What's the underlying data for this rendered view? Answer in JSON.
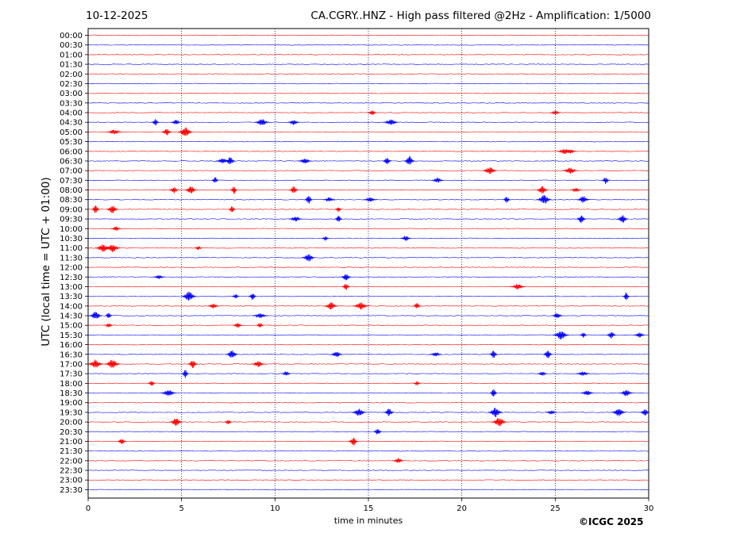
{
  "header": {
    "date": "10-12-2025",
    "title": "CA.CGRY..HNZ - High pass filtered @2Hz - Amplification: 1/5000"
  },
  "footer": {
    "copyright": "©ICGC 2025"
  },
  "colors": {
    "red_trace": "#ff0000",
    "blue_trace": "#0000ff",
    "gridline": "#00008b"
  },
  "chart_data": {
    "type": "line",
    "title": "CA.CGRY..HNZ - High pass filtered @2Hz - Amplification: 1/5000",
    "xlabel": "time in minutes",
    "ylabel": "UTC (local time = UTC + 01:00)",
    "xlim": [
      0,
      30
    ],
    "x_ticks": [
      0,
      5,
      10,
      15,
      20,
      25,
      30
    ],
    "vertical_gridlines": [
      5,
      10,
      15,
      20,
      25
    ],
    "grid": "vertical dotted",
    "legend": "none",
    "rows": [
      "00:00",
      "00:30",
      "01:00",
      "01:30",
      "02:00",
      "02:30",
      "03:00",
      "03:30",
      "04:00",
      "04:30",
      "05:00",
      "05:30",
      "06:00",
      "06:30",
      "07:00",
      "07:30",
      "08:00",
      "08:30",
      "09:00",
      "09:30",
      "10:00",
      "10:30",
      "11:00",
      "11:30",
      "12:00",
      "12:30",
      "13:00",
      "13:30",
      "14:00",
      "14:30",
      "15:00",
      "15:30",
      "16:00",
      "16:30",
      "17:00",
      "17:30",
      "18:00",
      "18:30",
      "19:00",
      "19:30",
      "20:00",
      "20:30",
      "21:00",
      "21:30",
      "22:00",
      "22:30",
      "23:00",
      "23:30"
    ],
    "row_colors": "alternating red (hh:00) and blue (hh:30)",
    "events": [
      {
        "row": "04:00",
        "minutes": [
          15.2,
          25.0
        ]
      },
      {
        "row": "04:30",
        "minutes": [
          3.6,
          4.7,
          9.3,
          11.0,
          16.2
        ]
      },
      {
        "row": "05:00",
        "minutes": [
          4.2,
          5.2,
          1.4
        ]
      },
      {
        "row": "06:00",
        "minutes": [
          25.5,
          25.8
        ]
      },
      {
        "row": "06:30",
        "minutes": [
          7.2,
          7.6,
          11.6,
          16.0,
          17.2
        ]
      },
      {
        "row": "07:00",
        "minutes": [
          21.5,
          25.8
        ]
      },
      {
        "row": "07:30",
        "minutes": [
          6.8,
          18.7,
          27.7
        ]
      },
      {
        "row": "08:00",
        "minutes": [
          4.6,
          5.5,
          7.8,
          11.0,
          24.3,
          26.1
        ]
      },
      {
        "row": "08:30",
        "minutes": [
          11.8,
          12.9,
          15.1,
          22.4,
          24.4,
          26.5
        ]
      },
      {
        "row": "09:00",
        "minutes": [
          0.4,
          1.3,
          7.7,
          13.4
        ]
      },
      {
        "row": "09:30",
        "minutes": [
          11.1,
          13.4,
          26.4,
          28.6
        ]
      },
      {
        "row": "10:00",
        "minutes": [
          1.5
        ]
      },
      {
        "row": "10:30",
        "minutes": [
          12.7,
          17.0
        ]
      },
      {
        "row": "11:00",
        "minutes": [
          0.8,
          1.3,
          5.9
        ]
      },
      {
        "row": "11:30",
        "minutes": [
          11.8
        ]
      },
      {
        "row": "12:30",
        "minutes": [
          3.8,
          13.8
        ]
      },
      {
        "row": "13:00",
        "minutes": [
          13.8,
          23.0
        ]
      },
      {
        "row": "13:30",
        "minutes": [
          5.4,
          7.9,
          8.8,
          28.8
        ]
      },
      {
        "row": "14:00",
        "minutes": [
          6.7,
          13.0,
          14.6,
          17.6
        ]
      },
      {
        "row": "14:30",
        "minutes": [
          0.4,
          1.1,
          9.2,
          25.1
        ]
      },
      {
        "row": "15:00",
        "minutes": [
          1.1,
          8.0,
          9.2
        ]
      },
      {
        "row": "15:30",
        "minutes": [
          25.3,
          26.5,
          28.0,
          29.5
        ]
      },
      {
        "row": "16:30",
        "minutes": [
          7.7,
          13.3,
          18.6,
          21.7,
          24.6
        ]
      },
      {
        "row": "17:00",
        "minutes": [
          0.4,
          1.3,
          5.6,
          9.1
        ]
      },
      {
        "row": "17:30",
        "minutes": [
          5.2,
          10.6,
          24.3,
          26.5
        ]
      },
      {
        "row": "18:00",
        "minutes": [
          3.4,
          17.6
        ]
      },
      {
        "row": "18:30",
        "minutes": [
          4.3,
          21.7,
          26.7,
          28.8
        ]
      },
      {
        "row": "19:30",
        "minutes": [
          14.5,
          16.1,
          21.8,
          24.8,
          28.4,
          29.8
        ]
      },
      {
        "row": "20:00",
        "minutes": [
          4.7,
          7.5,
          22.0
        ]
      },
      {
        "row": "20:30",
        "minutes": [
          15.5
        ]
      },
      {
        "row": "21:00",
        "minutes": [
          1.8,
          14.2
        ]
      },
      {
        "row": "22:00",
        "minutes": [
          16.6
        ]
      }
    ]
  }
}
